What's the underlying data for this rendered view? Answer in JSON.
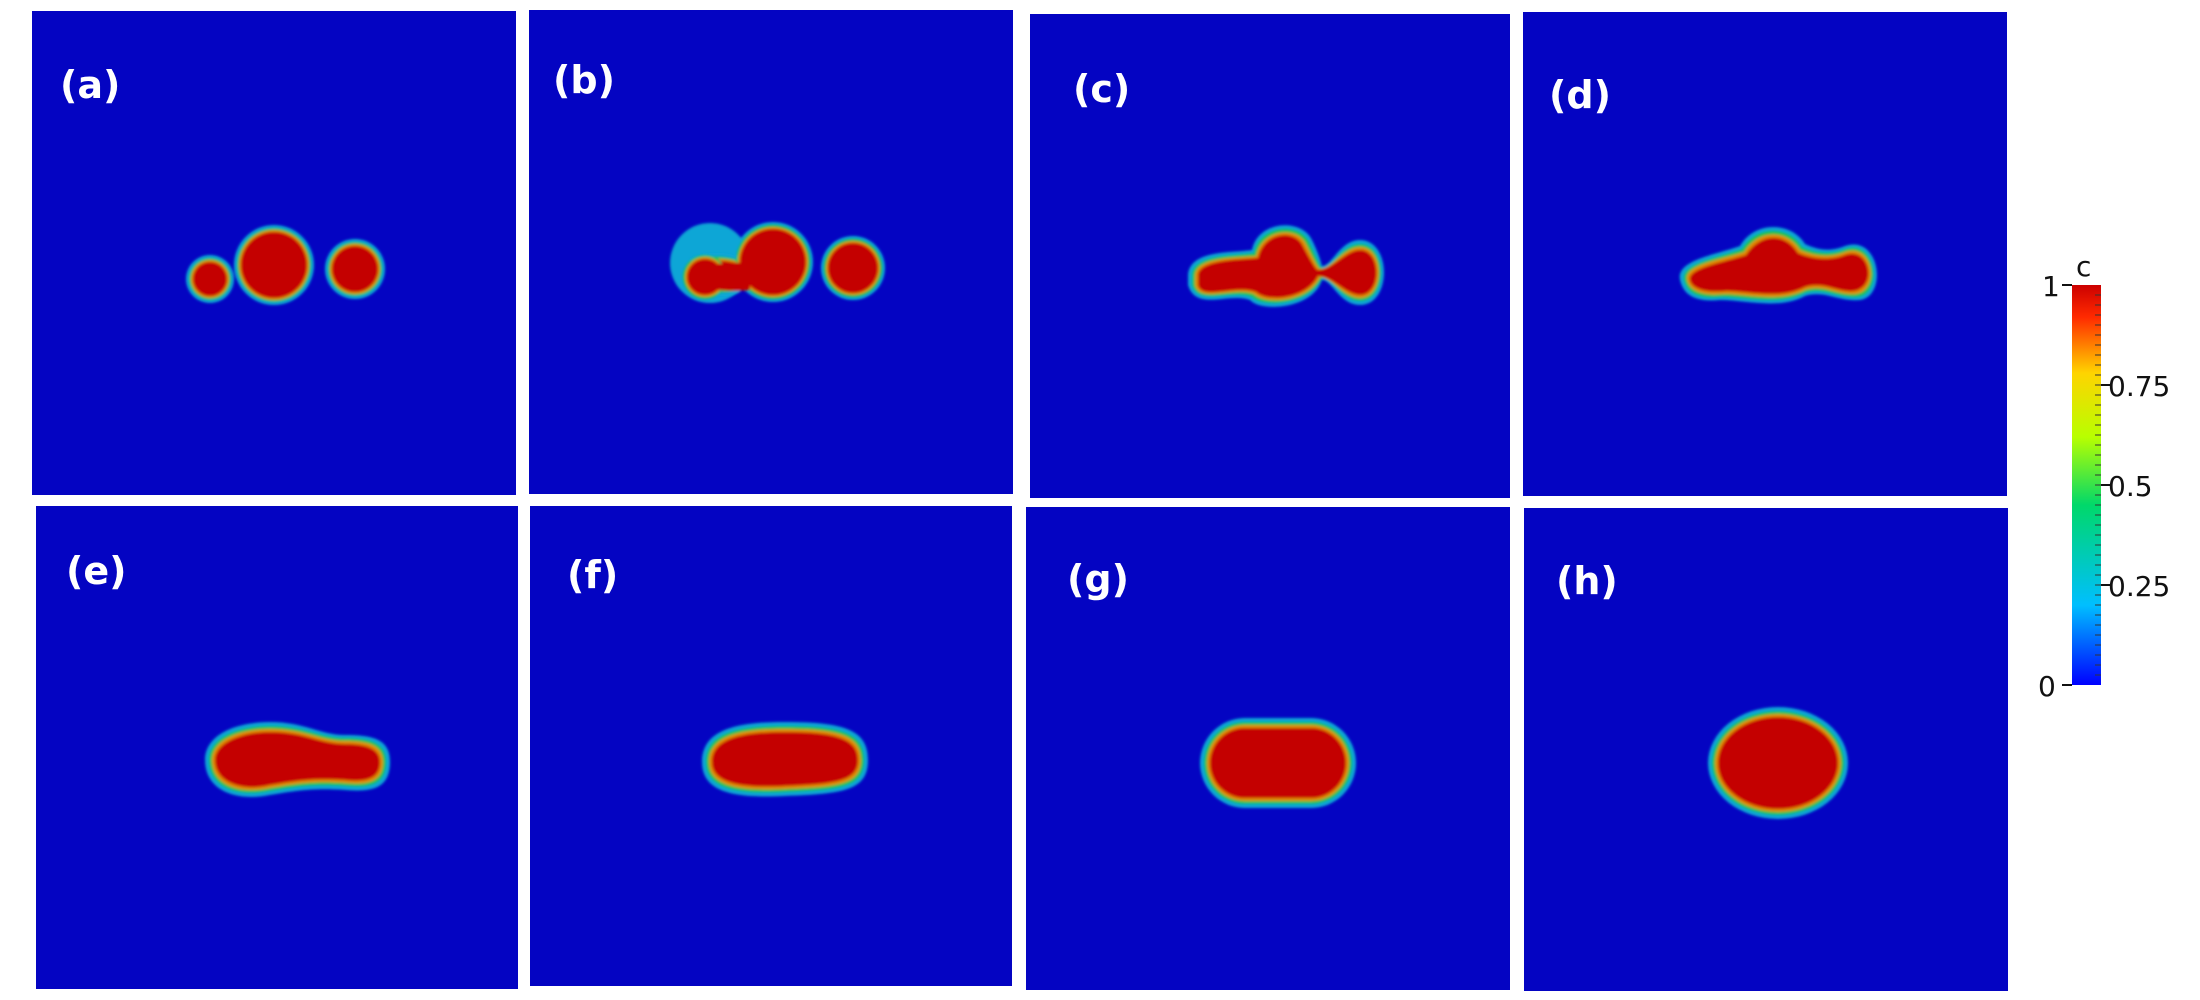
{
  "panels": [
    {
      "label": "(a)"
    },
    {
      "label": "(b)"
    },
    {
      "label": "(c)"
    },
    {
      "label": "(d)"
    },
    {
      "label": "(e)"
    },
    {
      "label": "(f)"
    },
    {
      "label": "(g)"
    },
    {
      "label": "(h)"
    }
  ],
  "colorbar": {
    "title": "c",
    "ticks": [
      "1",
      "0.75",
      "0.5",
      "0.25",
      "0"
    ],
    "colors": [
      "#0000ff",
      "#00bfff",
      "#00d86a",
      "#b8ff00",
      "#ffd400",
      "#ff2a00",
      "#cc0000"
    ]
  },
  "colors": {
    "background_field": "#0404c2",
    "droplet": "#c40000",
    "interface_inner": "#e08a00",
    "interface_mid": "#16c04a",
    "interface_outer": "#0ca6d6"
  }
}
